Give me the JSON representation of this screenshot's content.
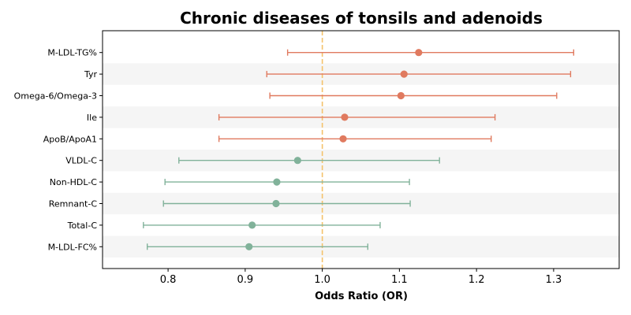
{
  "chart_data": {
    "type": "forest",
    "title": "Chronic diseases of tonsils and adenoids",
    "xlabel": "Odds Ratio (OR)",
    "ylabel": "",
    "xlim": [
      0.715,
      1.385
    ],
    "xticks": [
      "0.8",
      "0.9",
      "1.0",
      "1.1",
      "1.2",
      "1.3"
    ],
    "reference_line": 1.0,
    "reference_line_color": "#f5c26b",
    "color_above_1": "#e07a5f",
    "color_below_1": "#81b29a",
    "band_color": "#f5f5f5",
    "rows": [
      {
        "label": "M-LDL-TG%",
        "or": 1.125,
        "lower": 0.955,
        "upper": 1.326
      },
      {
        "label": "Tyr",
        "or": 1.106,
        "lower": 0.928,
        "upper": 1.322
      },
      {
        "label": "Omega-6/Omega-3",
        "or": 1.102,
        "lower": 0.932,
        "upper": 1.304
      },
      {
        "label": "Ile",
        "or": 1.029,
        "lower": 0.866,
        "upper": 1.224
      },
      {
        "label": "ApoB/ApoA1",
        "or": 1.027,
        "lower": 0.866,
        "upper": 1.219
      },
      {
        "label": "VLDL-C",
        "or": 0.968,
        "lower": 0.814,
        "upper": 1.152
      },
      {
        "label": "Non-HDL-C",
        "or": 0.941,
        "lower": 0.796,
        "upper": 1.113
      },
      {
        "label": "Remnant-C",
        "or": 0.94,
        "lower": 0.794,
        "upper": 1.114
      },
      {
        "label": "Total-C",
        "or": 0.909,
        "lower": 0.768,
        "upper": 1.075
      },
      {
        "label": "M-LDL-FC%",
        "or": 0.905,
        "lower": 0.773,
        "upper": 1.059
      }
    ]
  }
}
